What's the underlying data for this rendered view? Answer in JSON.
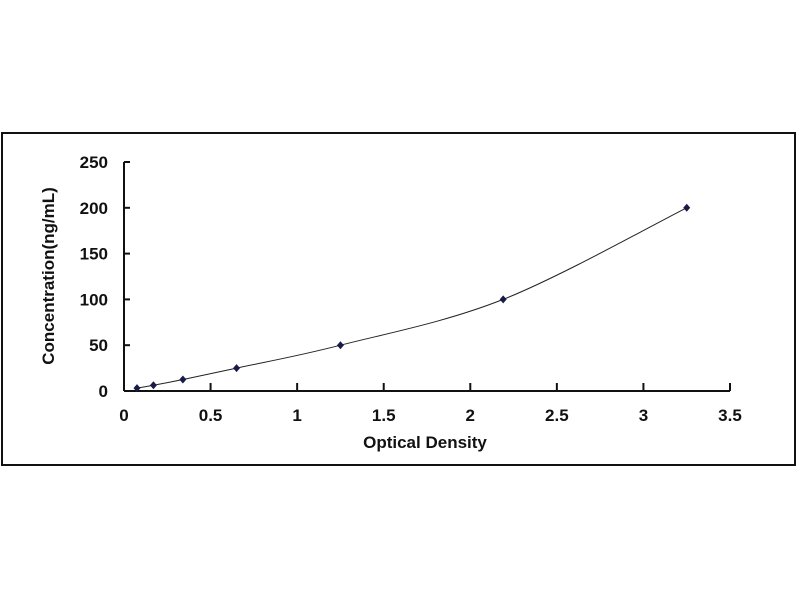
{
  "chart_data": {
    "type": "scatter",
    "title": "",
    "xlabel": "Optical Density",
    "ylabel": "Concentration(ng/mL)",
    "xlim": [
      0,
      3.5
    ],
    "ylim": [
      0,
      250
    ],
    "xticks": [
      "0",
      "0.5",
      "1",
      "1.5",
      "2",
      "2.5",
      "3",
      "3.5"
    ],
    "yticks": [
      "0",
      "50",
      "100",
      "150",
      "200",
      "250"
    ],
    "grid": false,
    "trendline": "smooth curve",
    "marker_color": "#1a1a4a",
    "series": [
      {
        "x": [
          0.075,
          0.17,
          0.34,
          0.65,
          1.25,
          2.19,
          3.25
        ],
        "y": [
          3.12,
          6.25,
          12.5,
          25,
          50,
          100,
          200
        ]
      }
    ]
  }
}
